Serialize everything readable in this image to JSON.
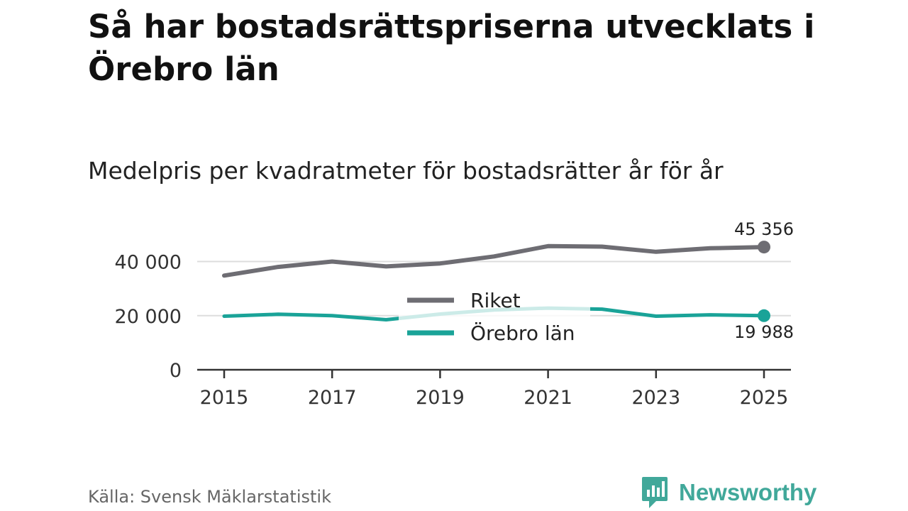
{
  "title": "Så har bostadsrättspriserna utvecklats i Örebro län",
  "subtitle": "Medelpris per kvadratmeter för bostadsrätter år för år",
  "source": "Källa: Svensk Mäklarstatistik",
  "brand": "Newsworthy",
  "colors": {
    "riket": "#6e6d73",
    "orebro": "#1aa398",
    "orebro_faded": "#cdeeea",
    "grid": "#dddddd",
    "axis": "#333333",
    "brand": "#41a89a"
  },
  "chart_data": {
    "type": "line",
    "x": [
      2015,
      2016,
      2017,
      2018,
      2019,
      2020,
      2021,
      2022,
      2023,
      2024,
      2025
    ],
    "xticks": [
      2015,
      2017,
      2019,
      2021,
      2023,
      2025
    ],
    "xtick_labels": [
      "2015",
      "2017",
      "2019",
      "2021",
      "2023",
      "2025"
    ],
    "yticks": [
      0,
      20000,
      40000
    ],
    "ytick_labels": [
      "0",
      "20 000",
      "40 000"
    ],
    "xlim": [
      2015,
      2025
    ],
    "ylim": [
      0,
      48000
    ],
    "grid": true,
    "legend_position": "center",
    "series": [
      {
        "name": "Riket",
        "values": [
          34800,
          38000,
          40000,
          38200,
          39300,
          41900,
          45700,
          45500,
          43600,
          44900,
          45356
        ],
        "end_label": "45 356"
      },
      {
        "name": "Örebro län",
        "values": [
          19800,
          20500,
          20000,
          18500,
          20600,
          22100,
          22800,
          22400,
          19800,
          20300,
          19988
        ],
        "end_label": "19 988"
      }
    ]
  }
}
